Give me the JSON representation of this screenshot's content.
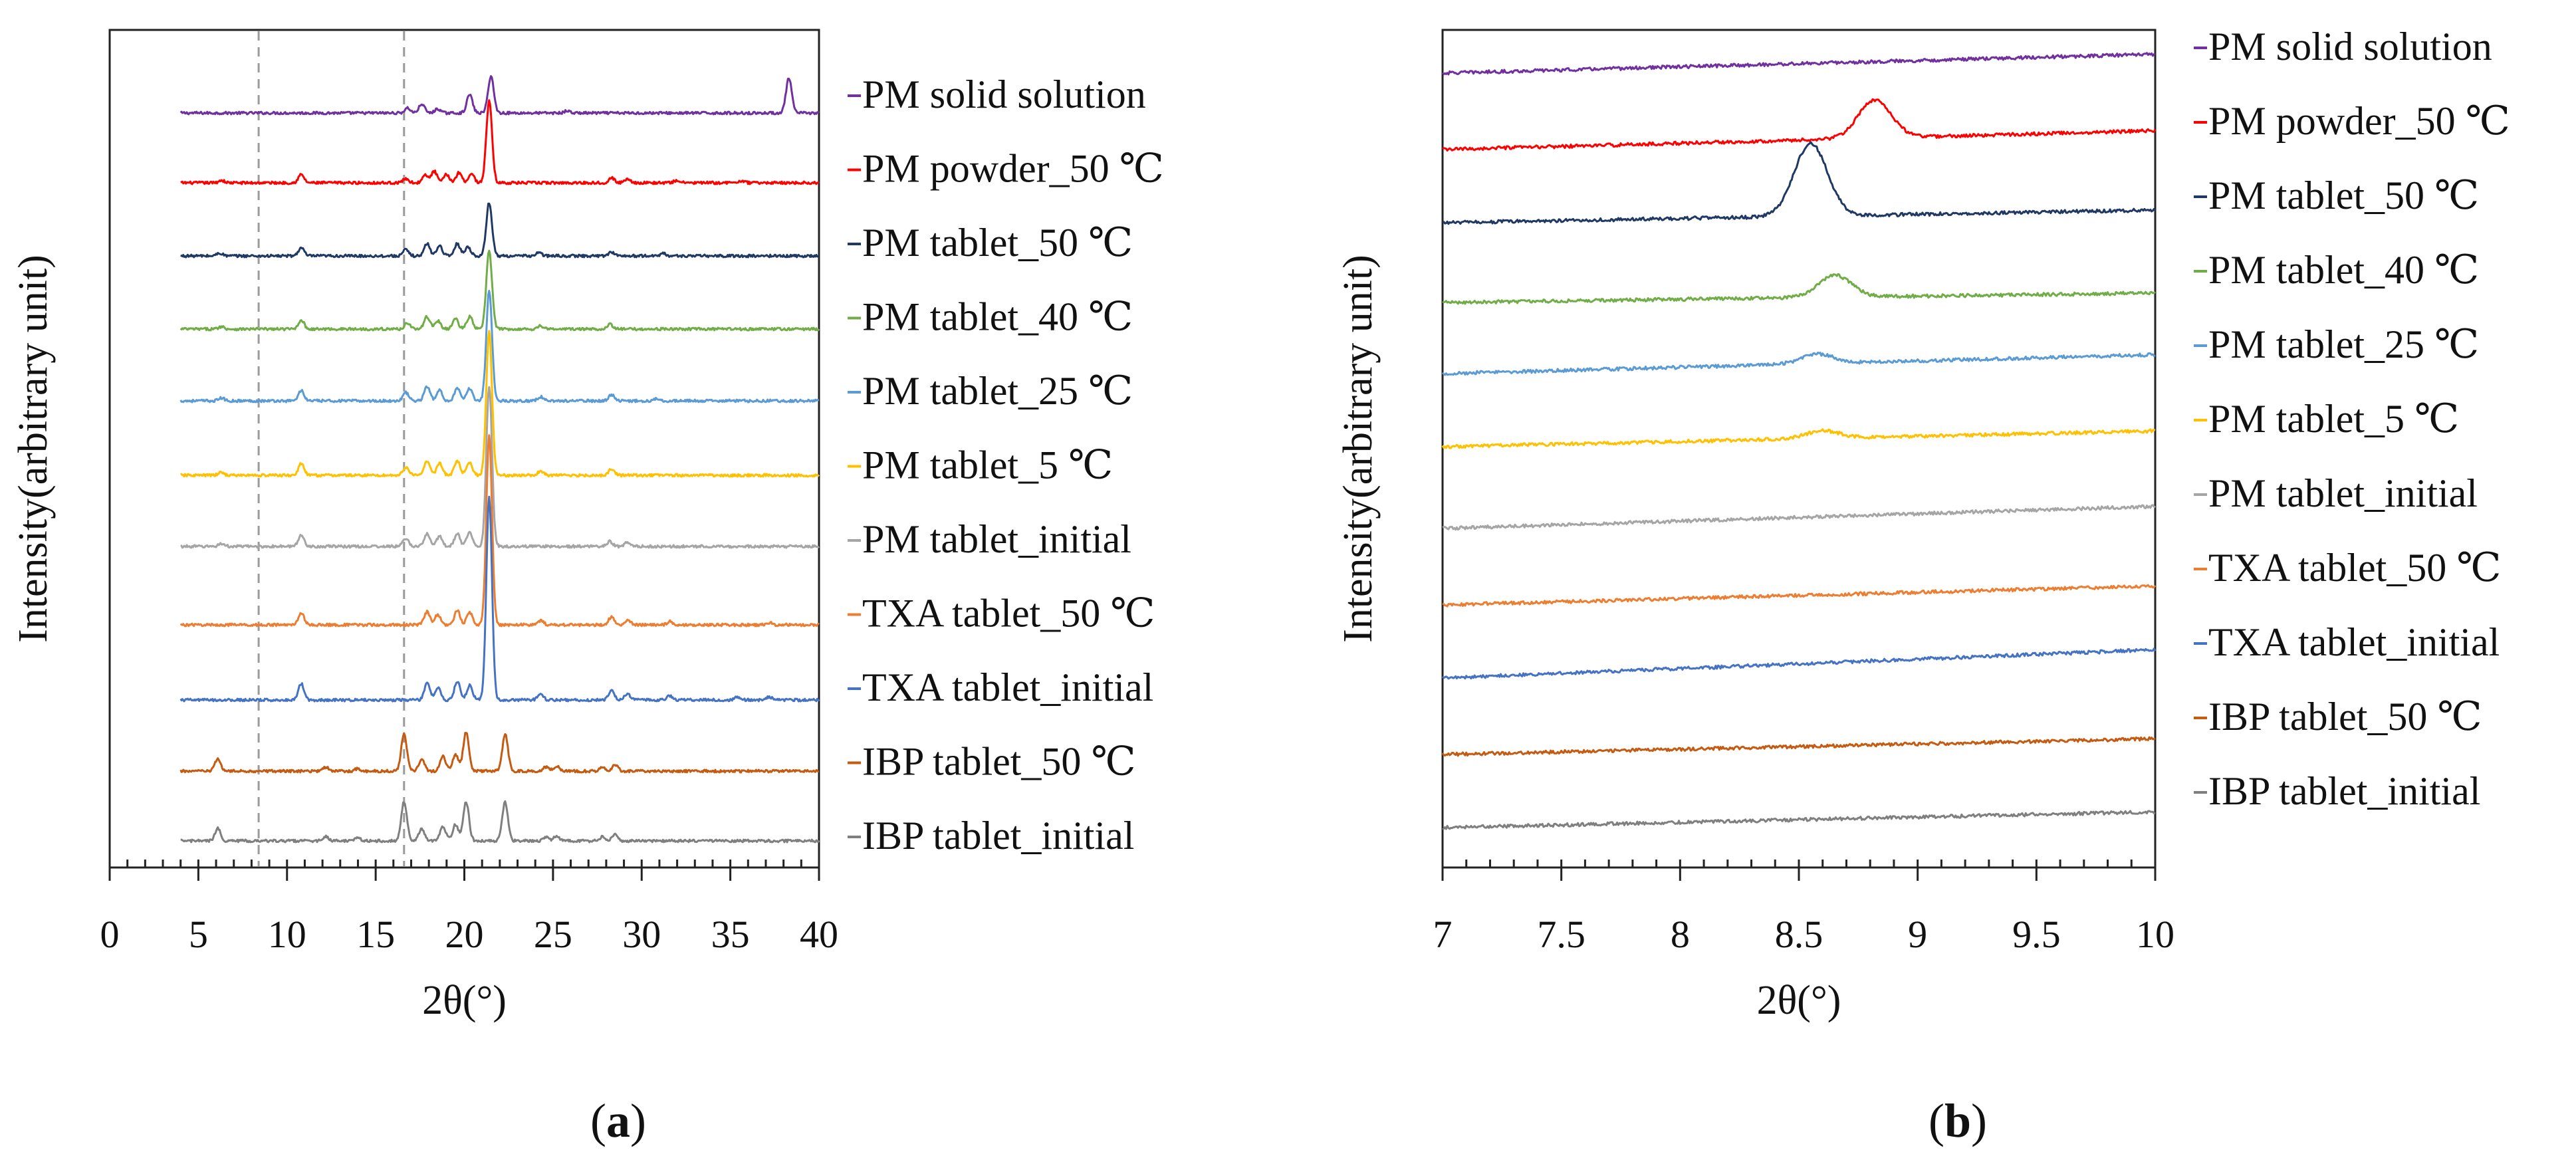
{
  "figure": {
    "panels": [
      {
        "id": "a",
        "tag_open": "(",
        "tag_letter": "a",
        "tag_close": ")"
      },
      {
        "id": "b",
        "tag_open": "(",
        "tag_letter": "b",
        "tag_close": ")"
      }
    ]
  },
  "chart_data": [
    {
      "type": "line",
      "panel": "a",
      "style": "stacked XRPD patterns (vertically offset, arbitrary intensity)",
      "xlabel": "2θ(°)",
      "ylabel": "Intensity(arbitrary unit)",
      "xlim": [
        0,
        40
      ],
      "x_range_plotted": [
        4,
        40
      ],
      "xticks": [
        0,
        5,
        10,
        15,
        20,
        25,
        30,
        35,
        40
      ],
      "xtick_labels": [
        "0",
        "5",
        "10",
        "15",
        "20",
        "25",
        "30",
        "35",
        "40"
      ],
      "minor_tick_step": 1,
      "reference_lines_2theta": [
        8.4,
        16.6
      ],
      "legend_position": "right",
      "series": [
        {
          "name": "PM solid solution",
          "color": "#7030a0",
          "peaks": [
            [
              16.8,
              0.12
            ],
            [
              17.6,
              0.22
            ],
            [
              18.5,
              0.1
            ],
            [
              20.3,
              0.45
            ],
            [
              21.5,
              0.9
            ],
            [
              25.8,
              0.05
            ],
            [
              38.3,
              0.85
            ]
          ]
        },
        {
          "name": "PM powder_50 ℃",
          "color": "#ff0000",
          "peaks": [
            [
              6.3,
              0.06
            ],
            [
              10.8,
              0.2
            ],
            [
              16.7,
              0.1
            ],
            [
              17.8,
              0.18
            ],
            [
              18.3,
              0.28
            ],
            [
              19.0,
              0.2
            ],
            [
              19.7,
              0.25
            ],
            [
              20.4,
              0.22
            ],
            [
              21.4,
              2.0
            ],
            [
              28.3,
              0.12
            ],
            [
              29.2,
              0.1
            ],
            [
              32.0,
              0.06
            ],
            [
              35.6,
              0.05
            ]
          ]
        },
        {
          "name": "PM tablet_50 ℃",
          "color": "#1f3864",
          "peaks": [
            [
              6.2,
              0.07
            ],
            [
              10.8,
              0.2
            ],
            [
              16.7,
              0.15
            ],
            [
              17.9,
              0.3
            ],
            [
              18.6,
              0.25
            ],
            [
              19.6,
              0.3
            ],
            [
              20.2,
              0.22
            ],
            [
              21.4,
              1.3
            ],
            [
              24.2,
              0.08
            ],
            [
              28.3,
              0.1
            ],
            [
              31.2,
              0.06
            ]
          ]
        },
        {
          "name": "PM tablet_40 ℃",
          "color": "#70ad47",
          "peaks": [
            [
              6.3,
              0.06
            ],
            [
              10.8,
              0.22
            ],
            [
              16.8,
              0.15
            ],
            [
              17.9,
              0.3
            ],
            [
              18.5,
              0.2
            ],
            [
              19.5,
              0.25
            ],
            [
              20.3,
              0.3
            ],
            [
              21.4,
              1.9
            ],
            [
              24.3,
              0.08
            ],
            [
              28.2,
              0.12
            ]
          ]
        },
        {
          "name": "PM tablet_25 ℃",
          "color": "#5b9bd5",
          "peaks": [
            [
              6.3,
              0.07
            ],
            [
              10.8,
              0.25
            ],
            [
              16.7,
              0.2
            ],
            [
              17.9,
              0.35
            ],
            [
              18.6,
              0.25
            ],
            [
              19.6,
              0.3
            ],
            [
              20.3,
              0.3
            ],
            [
              21.4,
              2.7
            ],
            [
              24.3,
              0.1
            ],
            [
              28.3,
              0.15
            ],
            [
              30.9,
              0.06
            ]
          ]
        },
        {
          "name": "PM tablet_5 ℃",
          "color": "#ffc000",
          "peaks": [
            [
              6.3,
              0.07
            ],
            [
              10.8,
              0.28
            ],
            [
              16.7,
              0.2
            ],
            [
              17.9,
              0.35
            ],
            [
              18.6,
              0.3
            ],
            [
              19.6,
              0.35
            ],
            [
              20.3,
              0.3
            ],
            [
              21.4,
              3.5
            ],
            [
              24.3,
              0.1
            ],
            [
              28.3,
              0.15
            ]
          ]
        },
        {
          "name": "PM tablet_initial",
          "color": "#a5a5a5",
          "peaks": [
            [
              6.3,
              0.07
            ],
            [
              10.8,
              0.28
            ],
            [
              16.7,
              0.2
            ],
            [
              17.9,
              0.3
            ],
            [
              18.6,
              0.25
            ],
            [
              19.6,
              0.3
            ],
            [
              20.3,
              0.35
            ],
            [
              21.4,
              3.9
            ],
            [
              28.2,
              0.12
            ],
            [
              29.2,
              0.1
            ]
          ]
        },
        {
          "name": "TXA tablet_50 ℃",
          "color": "#ed7d31",
          "peaks": [
            [
              10.8,
              0.3
            ],
            [
              17.9,
              0.32
            ],
            [
              18.5,
              0.25
            ],
            [
              19.6,
              0.35
            ],
            [
              20.3,
              0.3
            ],
            [
              21.4,
              4.6
            ],
            [
              24.3,
              0.1
            ],
            [
              28.3,
              0.2
            ],
            [
              29.2,
              0.12
            ],
            [
              31.6,
              0.08
            ],
            [
              37.2,
              0.06
            ]
          ]
        },
        {
          "name": "TXA tablet_initial",
          "color": "#4472c4",
          "peaks": [
            [
              10.8,
              0.4
            ],
            [
              17.9,
              0.4
            ],
            [
              18.5,
              0.3
            ],
            [
              19.6,
              0.45
            ],
            [
              20.3,
              0.35
            ],
            [
              21.4,
              4.9
            ],
            [
              24.3,
              0.15
            ],
            [
              28.3,
              0.25
            ],
            [
              29.2,
              0.15
            ],
            [
              31.6,
              0.1
            ],
            [
              35.4,
              0.08
            ],
            [
              37.2,
              0.08
            ]
          ]
        },
        {
          "name": "IBP tablet_50 ℃",
          "color": "#c55a11",
          "peaks": [
            [
              6.1,
              0.3
            ],
            [
              12.2,
              0.1
            ],
            [
              14.0,
              0.06
            ],
            [
              16.6,
              0.9
            ],
            [
              17.6,
              0.3
            ],
            [
              18.8,
              0.35
            ],
            [
              19.5,
              0.4
            ],
            [
              20.1,
              0.95
            ],
            [
              22.3,
              0.9
            ],
            [
              24.6,
              0.1
            ],
            [
              25.2,
              0.12
            ],
            [
              27.8,
              0.1
            ],
            [
              28.5,
              0.15
            ]
          ]
        },
        {
          "name": "IBP tablet_initial",
          "color": "#7f7f7f",
          "peaks": [
            [
              6.1,
              0.3
            ],
            [
              12.2,
              0.1
            ],
            [
              14.0,
              0.06
            ],
            [
              16.6,
              0.95
            ],
            [
              17.6,
              0.3
            ],
            [
              18.8,
              0.35
            ],
            [
              19.5,
              0.4
            ],
            [
              20.1,
              0.95
            ],
            [
              22.3,
              0.95
            ],
            [
              24.6,
              0.1
            ],
            [
              25.2,
              0.12
            ],
            [
              27.8,
              0.1
            ],
            [
              28.5,
              0.15
            ]
          ]
        }
      ]
    },
    {
      "type": "line",
      "panel": "b",
      "style": "stacked XRPD patterns, zoom of 7–10° region",
      "xlabel": "2θ(°)",
      "ylabel": "Intensity(arbitrary unit)",
      "xlim": [
        7,
        10
      ],
      "xticks": [
        7,
        7.5,
        8,
        8.5,
        9,
        9.5,
        10
      ],
      "xtick_labels": [
        "7",
        "7.5",
        "8",
        "8.5",
        "9",
        "9.5",
        "10"
      ],
      "minor_tick_step": 0.1,
      "legend_position": "right",
      "series": [
        {
          "name": "PM solid solution",
          "color": "#7030a0",
          "slope": 0.3,
          "peaks": []
        },
        {
          "name": "PM powder_50 ℃",
          "color": "#ff0000",
          "slope": 0.3,
          "peaks": [
            [
              8.82,
              0.6
            ]
          ]
        },
        {
          "name": "PM tablet_50 ℃",
          "color": "#1f3864",
          "slope": 0.2,
          "peaks": [
            [
              8.55,
              1.15
            ]
          ]
        },
        {
          "name": "PM tablet_40 ℃",
          "color": "#70ad47",
          "slope": 0.15,
          "peaks": [
            [
              8.65,
              0.35
            ]
          ]
        },
        {
          "name": "PM tablet_25 ℃",
          "color": "#5b9bd5",
          "slope": 0.3,
          "peaks": [
            [
              8.58,
              0.15
            ]
          ]
        },
        {
          "name": "PM tablet_5 ℃",
          "color": "#ffc000",
          "slope": 0.25,
          "peaks": [
            [
              8.6,
              0.12
            ]
          ]
        },
        {
          "name": "PM tablet_initial",
          "color": "#a5a5a5",
          "slope": 0.35,
          "peaks": []
        },
        {
          "name": "TXA tablet_50 ℃",
          "color": "#ed7d31",
          "slope": 0.3,
          "peaks": []
        },
        {
          "name": "TXA tablet_initial",
          "color": "#4472c4",
          "slope": 0.45,
          "peaks": []
        },
        {
          "name": "IBP tablet_50 ℃",
          "color": "#c55a11",
          "slope": 0.25,
          "peaks": []
        },
        {
          "name": "IBP tablet_initial",
          "color": "#7f7f7f",
          "slope": 0.25,
          "peaks": []
        }
      ]
    }
  ]
}
